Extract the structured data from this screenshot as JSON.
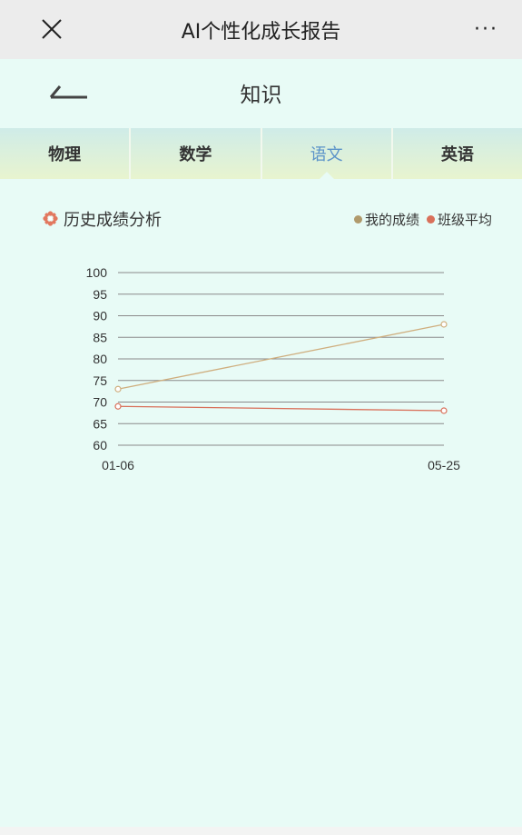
{
  "window": {
    "title": "AI个性化成长报告",
    "more_label": "···",
    "close_icon": "close-icon",
    "more_icon": "ellipsis-icon"
  },
  "header": {
    "title": "知识",
    "back_icon": "back-arrow-icon"
  },
  "tabs": [
    {
      "label": "物理",
      "active": false
    },
    {
      "label": "数学",
      "active": false
    },
    {
      "label": "语文",
      "active": true
    },
    {
      "label": "英语",
      "active": false
    }
  ],
  "section": {
    "title": "历史成绩分析",
    "icon": "flower-icon",
    "legend": [
      {
        "label": "我的成绩",
        "color": "#b09a6c"
      },
      {
        "label": "班级平均",
        "color": "#d9705a"
      }
    ]
  },
  "chart_data": {
    "type": "line",
    "x": [
      "01-06",
      "05-25"
    ],
    "series": [
      {
        "name": "我的成绩",
        "values": [
          73,
          88
        ],
        "color": "#cfae7e"
      },
      {
        "name": "班级平均",
        "values": [
          69,
          68
        ],
        "color": "#d9705a"
      }
    ],
    "yticks": [
      100,
      95,
      90,
      85,
      80,
      75,
      70,
      65,
      60
    ],
    "ylim": [
      60,
      100
    ],
    "grid": true,
    "legend": "top-right"
  }
}
